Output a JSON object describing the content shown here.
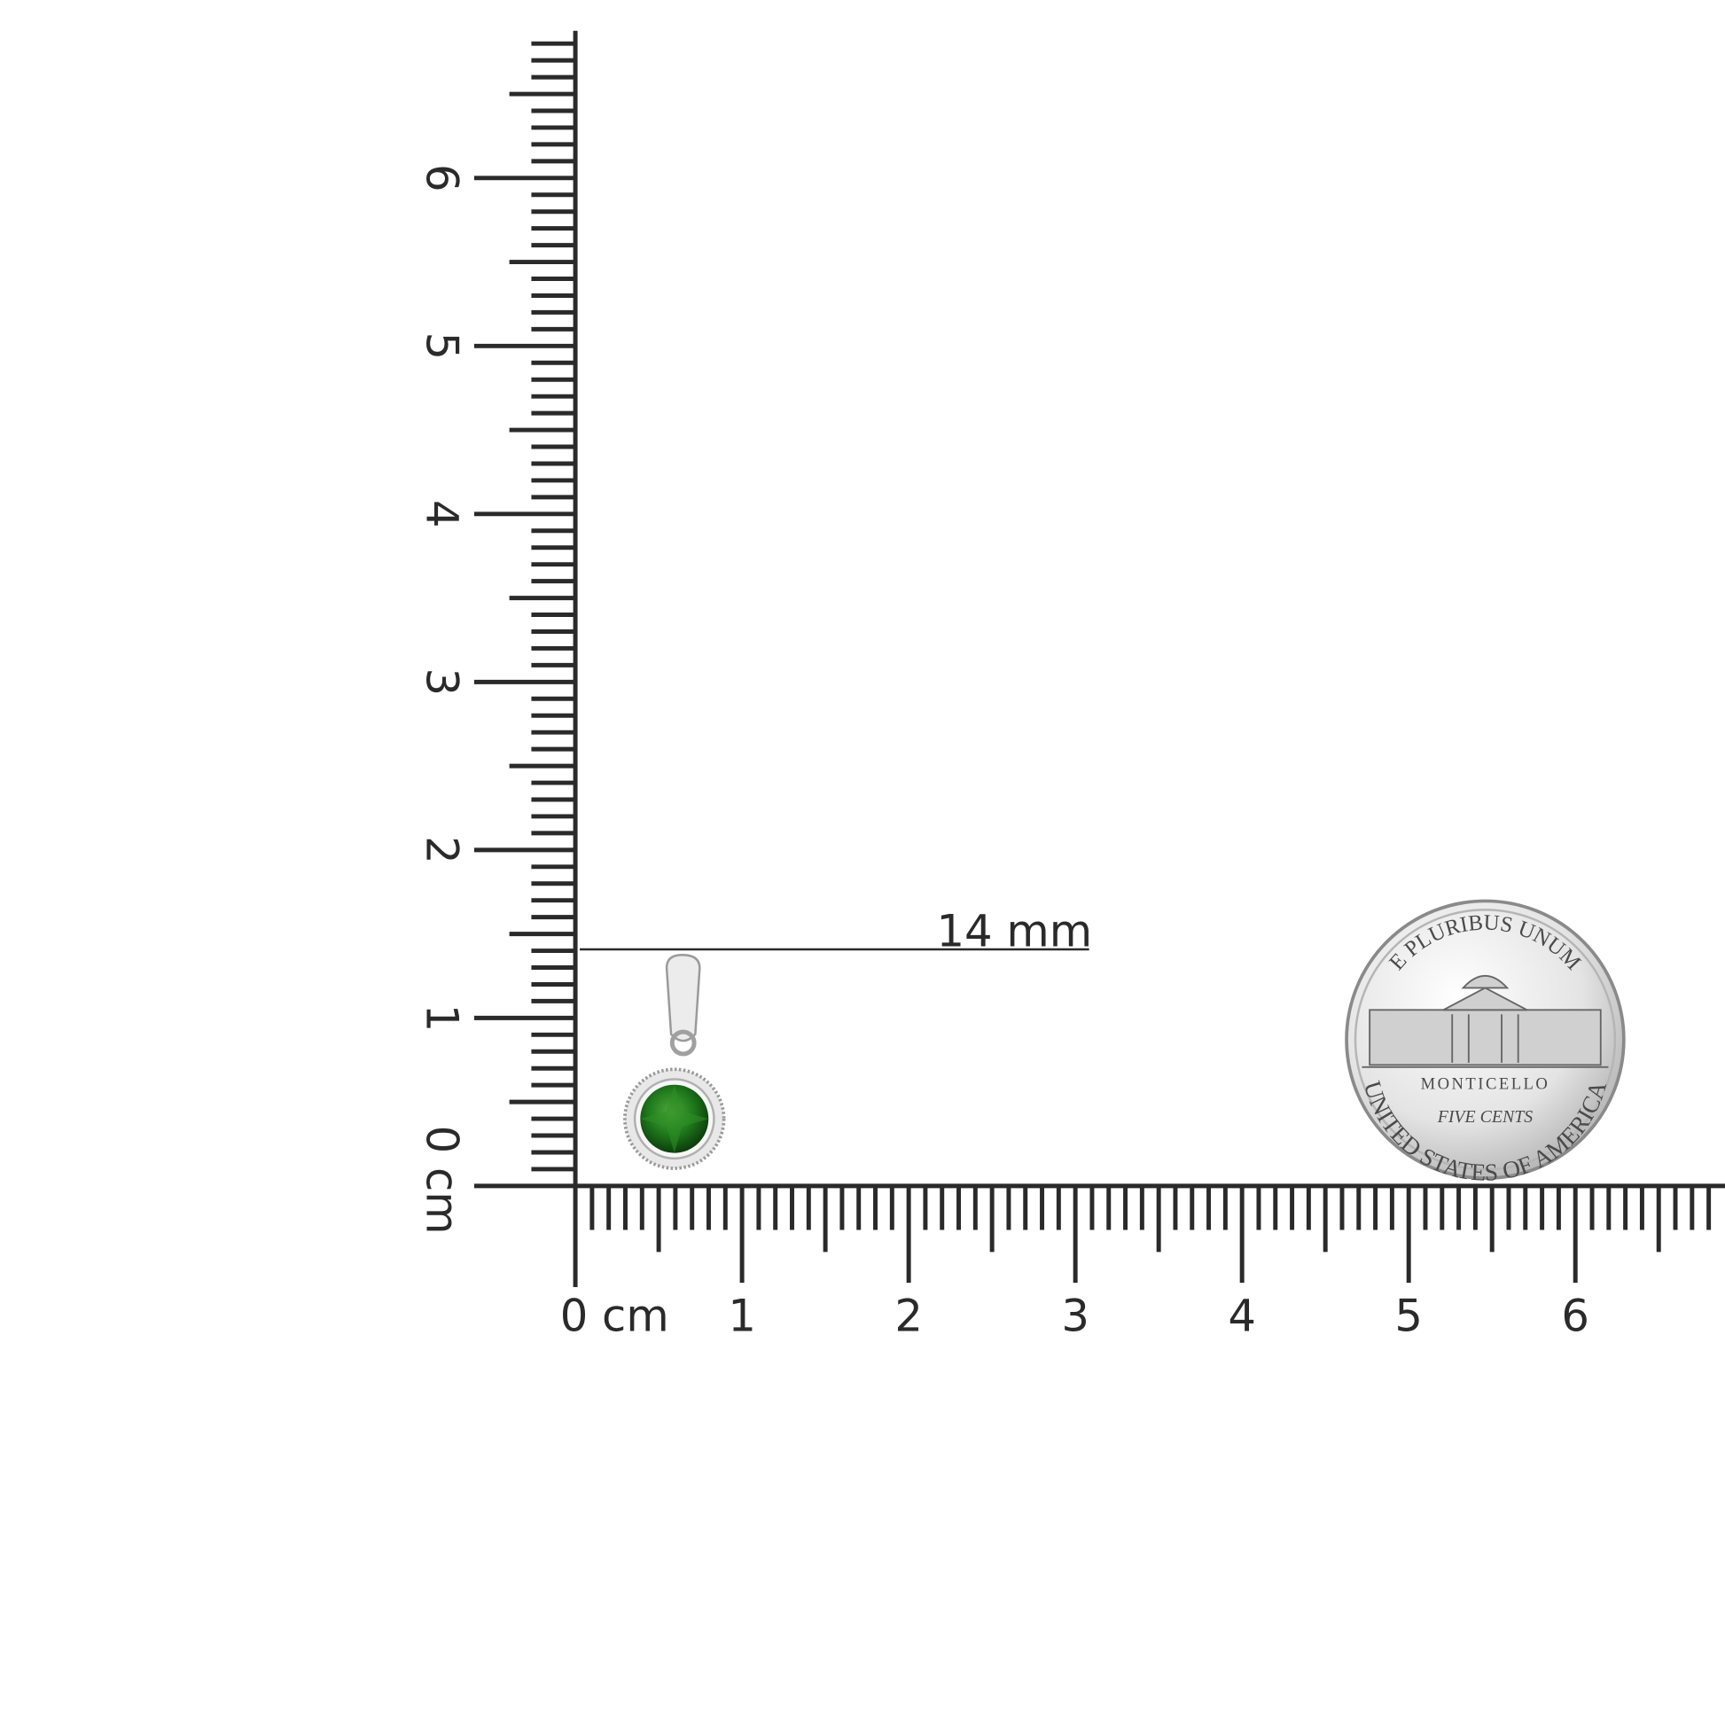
{
  "rulers": {
    "vertical": {
      "labels": [
        "0 cm",
        "1",
        "2",
        "3",
        "4",
        "5",
        "6"
      ]
    },
    "horizontal": {
      "labels": [
        "0 cm",
        "1",
        "2",
        "3",
        "4",
        "5",
        "6"
      ]
    }
  },
  "measurement": {
    "label": "14 mm"
  },
  "coin": {
    "top": "E PLURIBUS UNUM",
    "building": "MONTICELLO",
    "value": "FIVE CENTS",
    "bottom": "UNITED STATES OF AMERICA"
  }
}
